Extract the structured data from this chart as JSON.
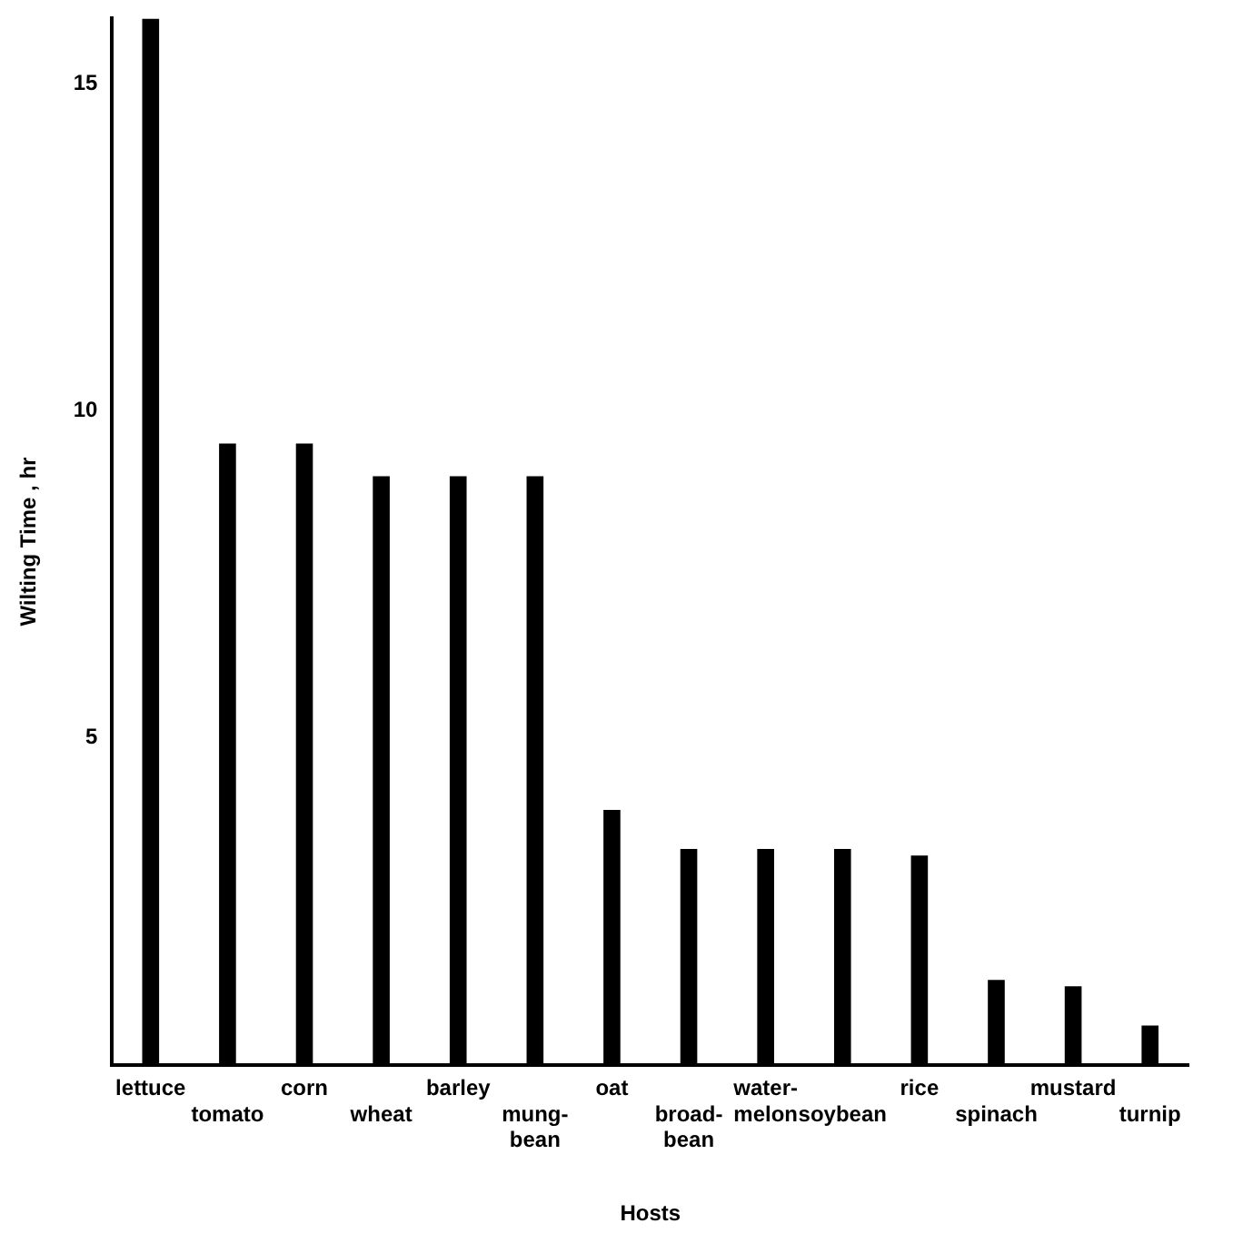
{
  "chart_data": {
    "type": "bar",
    "xlabel": "Hosts",
    "ylabel": "Wilting Time , hr",
    "categories": [
      "lettuce",
      "tomato",
      "corn",
      "wheat",
      "barley",
      "mung-\nbean",
      "oat",
      "broad-\nbean",
      "water-\nmelon",
      "soybean",
      "rice",
      "spinach",
      "mustard",
      "turnip"
    ],
    "values": [
      16,
      9.5,
      9.5,
      9,
      9,
      9,
      3.9,
      3.3,
      3.3,
      3.3,
      3.2,
      1.3,
      1.2,
      0.6
    ],
    "color": "#000000",
    "ylim": [
      0,
      16
    ],
    "yticks": [
      5,
      10,
      15
    ],
    "grid": false,
    "legend": false
  }
}
